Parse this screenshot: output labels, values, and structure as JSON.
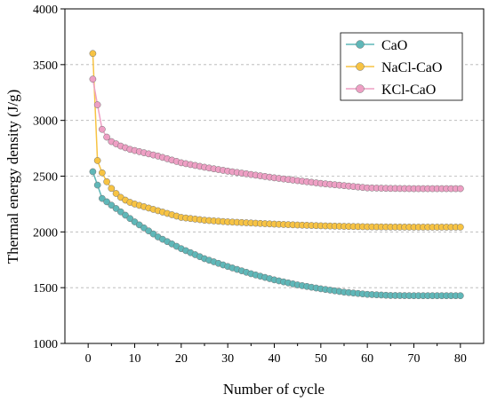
{
  "chart_data": {
    "type": "line",
    "title": "",
    "xlabel": "Number of cycle",
    "ylabel": "Thermal energy density (J/g)",
    "xlim": [
      -5,
      85
    ],
    "ylim": [
      1000,
      4000
    ],
    "x_ticks": [
      0,
      10,
      20,
      30,
      40,
      50,
      60,
      70,
      80
    ],
    "y_ticks": [
      1000,
      1500,
      2000,
      2500,
      3000,
      3500,
      4000
    ],
    "grid": "horizontal dashed",
    "legend_position": "top-right",
    "series": [
      {
        "name": "CaO",
        "color": "#5fb7b8",
        "x": [
          1,
          2,
          3,
          4,
          5,
          6,
          7,
          8,
          9,
          10,
          15,
          20,
          25,
          30,
          35,
          40,
          45,
          50,
          55,
          60,
          65,
          70,
          75,
          80
        ],
        "y": [
          2540,
          2420,
          2300,
          2270,
          2240,
          2210,
          2180,
          2150,
          2120,
          2090,
          1955,
          1850,
          1760,
          1690,
          1625,
          1570,
          1525,
          1490,
          1460,
          1440,
          1430,
          1428,
          1428,
          1428
        ]
      },
      {
        "name": "NaCl-CaO",
        "color": "#f7c343",
        "x": [
          1,
          2,
          3,
          4,
          5,
          6,
          7,
          8,
          9,
          10,
          15,
          20,
          25,
          30,
          35,
          40,
          45,
          50,
          55,
          60,
          65,
          70,
          75,
          80
        ],
        "y": [
          3600,
          2640,
          2530,
          2450,
          2390,
          2345,
          2310,
          2285,
          2265,
          2250,
          2190,
          2130,
          2105,
          2090,
          2080,
          2070,
          2062,
          2055,
          2050,
          2046,
          2044,
          2043,
          2043,
          2043
        ]
      },
      {
        "name": "KCl-CaO",
        "color": "#ee9fc4",
        "x": [
          1,
          2,
          3,
          4,
          5,
          6,
          7,
          8,
          9,
          10,
          15,
          20,
          25,
          30,
          35,
          40,
          45,
          50,
          55,
          60,
          65,
          70,
          75,
          80
        ],
        "y": [
          3370,
          3140,
          2920,
          2850,
          2810,
          2790,
          2770,
          2755,
          2740,
          2730,
          2680,
          2620,
          2580,
          2545,
          2515,
          2485,
          2460,
          2435,
          2415,
          2395,
          2390,
          2388,
          2388,
          2388
        ]
      }
    ]
  }
}
